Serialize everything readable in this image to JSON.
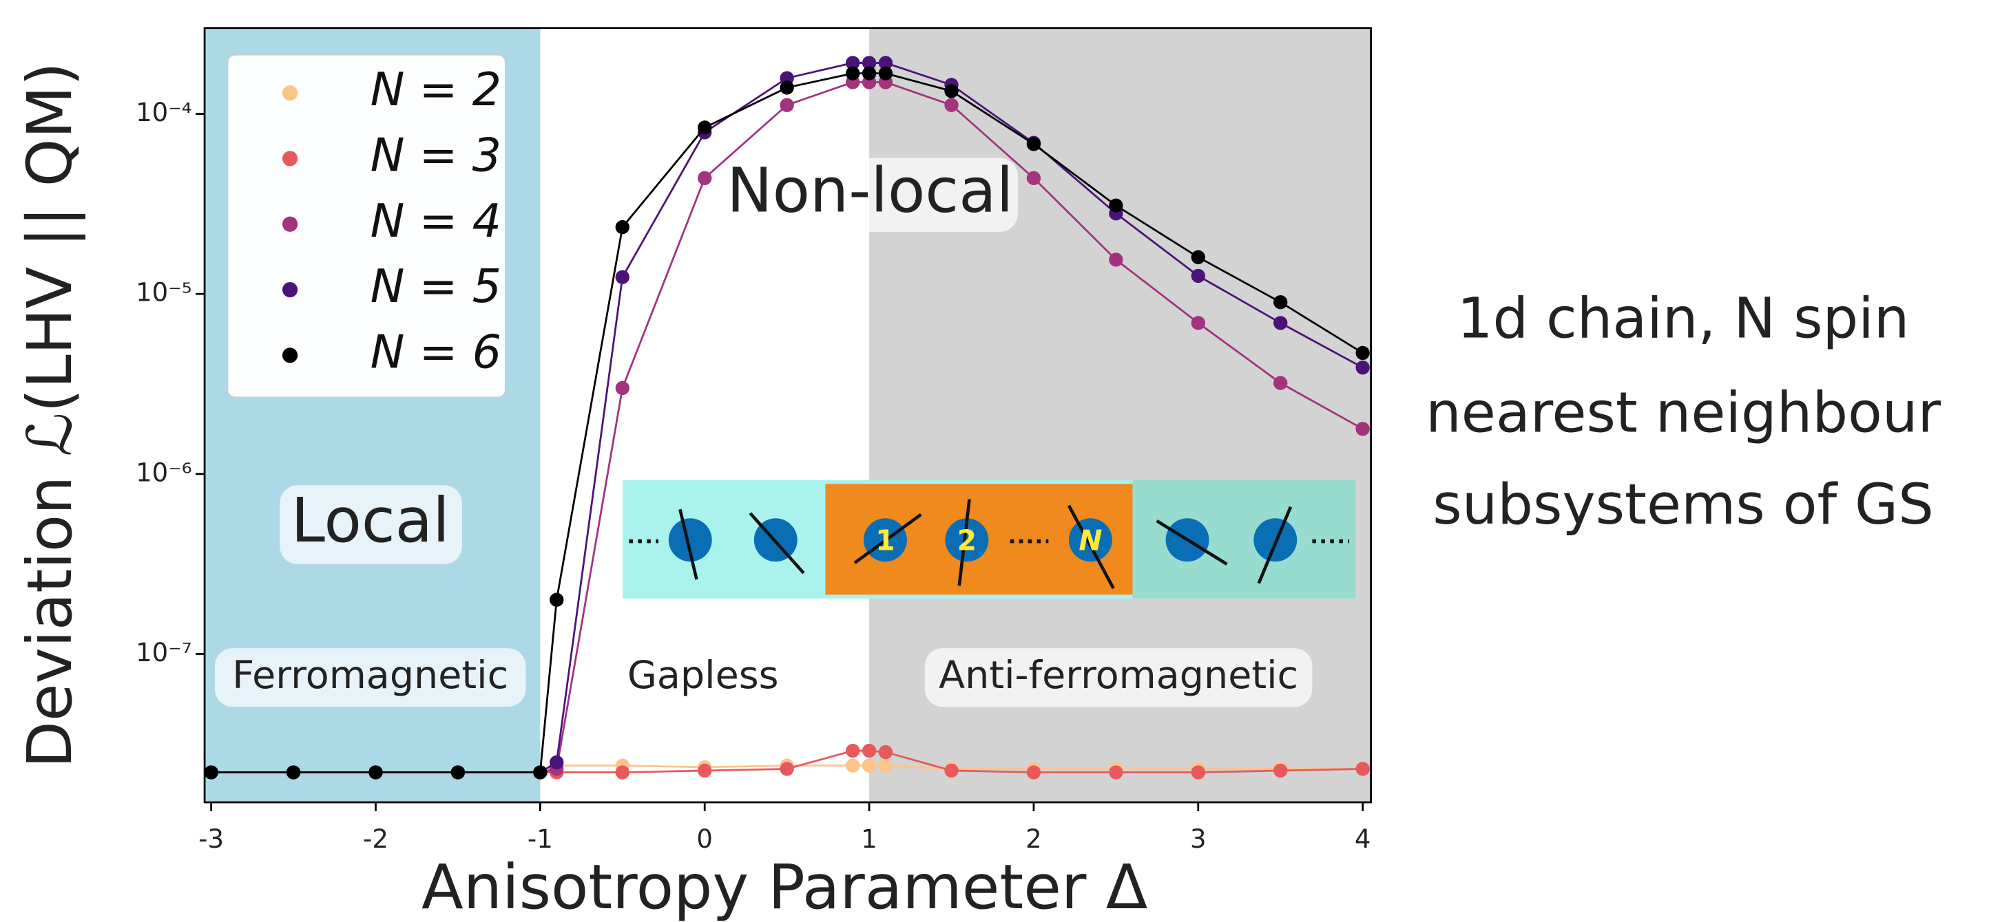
{
  "chart_data": {
    "type": "line",
    "log_y": true,
    "x_label": "Anisotropy Parameter Δ",
    "y_label": "Deviation ℒ(LHV || QM)",
    "x": [
      -3,
      -2.5,
      -2,
      -1.5,
      -1,
      -0.9,
      -0.5,
      0,
      0.5,
      0.9,
      1,
      1.1,
      1.5,
      2,
      2.5,
      3,
      3.5,
      4
    ],
    "series": [
      {
        "name": "N = 2",
        "color": "#fdc48a",
        "values": [
          2.2e-08,
          2.2e-08,
          2.2e-08,
          2.2e-08,
          2.2e-08,
          2.4e-08,
          2.4e-08,
          2.35e-08,
          2.4e-08,
          2.4e-08,
          2.4e-08,
          2.4e-08,
          2.3e-08,
          2.3e-08,
          2.3e-08,
          2.3e-08,
          2.3e-08,
          2.3e-08
        ]
      },
      {
        "name": "N = 3",
        "color": "#e8595c",
        "values": [
          2.2e-08,
          2.2e-08,
          2.2e-08,
          2.2e-08,
          2.2e-08,
          2.2e-08,
          2.2e-08,
          2.25e-08,
          2.3e-08,
          2.9e-08,
          2.9e-08,
          2.85e-08,
          2.25e-08,
          2.2e-08,
          2.2e-08,
          2.2e-08,
          2.25e-08,
          2.3e-08
        ]
      },
      {
        "name": "N = 4",
        "color": "#a3327f",
        "values": [
          2.2e-08,
          2.2e-08,
          2.2e-08,
          2.2e-08,
          2.2e-08,
          2.3e-08,
          3e-06,
          4.4e-05,
          0.000112,
          0.00015,
          0.00015,
          0.00015,
          0.000112,
          4.4e-05,
          1.55e-05,
          6.9e-06,
          3.2e-06,
          1.78e-06
        ]
      },
      {
        "name": "N = 5",
        "color": "#4b1378",
        "values": [
          2.2e-08,
          2.2e-08,
          2.2e-08,
          2.2e-08,
          2.2e-08,
          2.5e-08,
          1.24e-05,
          7.9e-05,
          0.000158,
          0.000192,
          0.000192,
          0.000192,
          0.000145,
          6.9e-05,
          2.8e-05,
          1.26e-05,
          6.9e-06,
          3.9e-06
        ]
      },
      {
        "name": "N = 6",
        "color": "#000000",
        "values": [
          2.2e-08,
          2.2e-08,
          2.2e-08,
          2.2e-08,
          2.2e-08,
          2e-07,
          2.35e-05,
          8.4e-05,
          0.00014,
          0.000168,
          0.000168,
          0.000168,
          0.000134,
          6.8e-05,
          3.1e-05,
          1.6e-05,
          9e-06,
          4.7e-06
        ]
      }
    ],
    "xlim": [
      -3.04,
      4.05
    ],
    "ylim": [
      1.5e-08,
      0.0003
    ],
    "xticks": [
      -3,
      -2,
      -1,
      0,
      1,
      2,
      3,
      4
    ],
    "yticks": [
      {
        "value": 1e-07,
        "label": "10⁻⁷"
      },
      {
        "value": 1e-06,
        "label": "10⁻⁶"
      },
      {
        "value": 1e-05,
        "label": "10⁻⁵"
      },
      {
        "value": 0.0001,
        "label": "10⁻⁴"
      }
    ],
    "shading": [
      {
        "range": [
          -3.04,
          -1
        ],
        "color": "#add8e6"
      },
      {
        "range": [
          1,
          4.05
        ],
        "color": "#d3d3d3"
      }
    ],
    "legend": "upper left",
    "annotations": [
      "Local",
      "Non-local",
      "Ferromagnetic",
      "Gapless",
      "Anti-ferromagnetic"
    ],
    "inset_labels": [
      "1",
      "2",
      "N"
    ],
    "side_text": [
      "1d chain, N spin",
      "nearest neighbour",
      "subsystems of GS"
    ]
  }
}
